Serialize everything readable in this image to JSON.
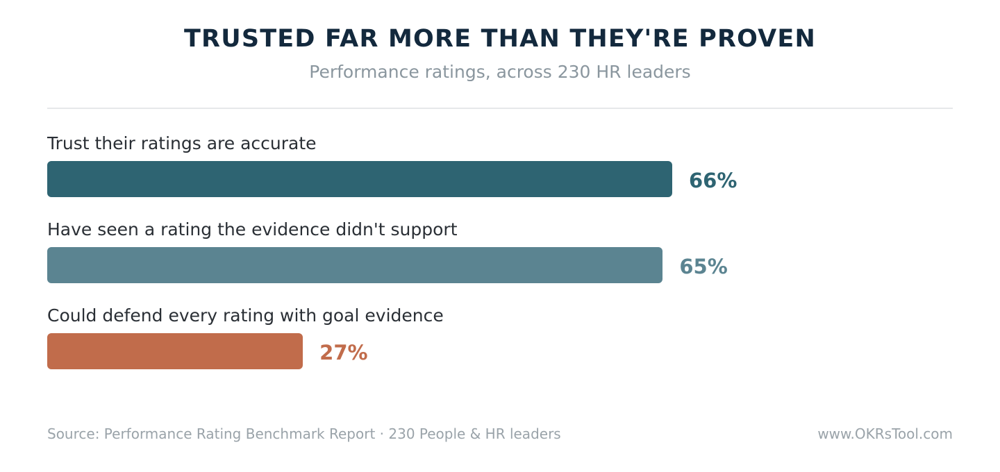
{
  "header": {
    "title": "TRUSTED FAR MORE THAN THEY'RE PROVEN",
    "subtitle": "Performance ratings, across 230 HR leaders"
  },
  "footer": {
    "source": "Source: Performance Rating Benchmark Report · 230 People & HR leaders",
    "site": "www.OKRsTool.com"
  },
  "chart_data": {
    "type": "bar",
    "orientation": "horizontal",
    "title": "TRUSTED FAR MORE THAN THEY'RE PROVEN",
    "subtitle": "Performance ratings, across 230 HR leaders",
    "categories": [
      "Trust their ratings are accurate",
      "Have seen a rating the evidence didn't support",
      "Could defend every rating with goal evidence"
    ],
    "values": [
      66,
      65,
      27
    ],
    "value_labels": [
      "66%",
      "65%",
      "27%"
    ],
    "colors": [
      "#2e6472",
      "#5b8491",
      "#c16c4b"
    ],
    "xlim": [
      0,
      100
    ],
    "grid": false
  }
}
